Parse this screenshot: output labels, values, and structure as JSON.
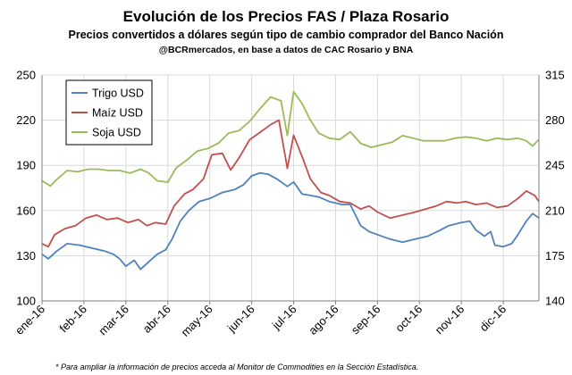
{
  "header": {
    "title": "Evolución de los Precios FAS / Plaza Rosario",
    "subtitle": "Precios convertidos a dólares según tipo de cambio comprador del Banco Nación",
    "credit": "@BCRmercados, en base a datos de CAC Rosario y BNA"
  },
  "footnote": "* Para ampliar la información de precios acceda al Monitor de Commodities en la Sección Estadística.",
  "chart_data": {
    "type": "line",
    "title": "Evolución de los Precios FAS / Plaza Rosario",
    "subtitle": "Precios convertidos a dólares según tipo de cambio comprador del Banco Nación",
    "xlabel": "",
    "ylabel": "",
    "categories": [
      "ene-16",
      "feb-16",
      "mar-16",
      "abr-16",
      "may-16",
      "jun-16",
      "jul-16",
      "ago-16",
      "sep-16",
      "oct-16",
      "nov-16",
      "dic-16"
    ],
    "x_range": [
      0,
      11.85
    ],
    "left_axis": {
      "range": [
        100,
        250
      ],
      "ticks": [
        100,
        130,
        160,
        190,
        220,
        250
      ]
    },
    "right_axis": {
      "range": [
        140,
        315
      ],
      "ticks": [
        140,
        175,
        210,
        245,
        280,
        315
      ]
    },
    "grid": true,
    "legend_position": "top-left",
    "series": [
      {
        "name": "Trigo USD",
        "color": "#4f81bd",
        "axis": "left",
        "points": [
          [
            0,
            131
          ],
          [
            0.15,
            128
          ],
          [
            0.35,
            133
          ],
          [
            0.6,
            138
          ],
          [
            0.9,
            137
          ],
          [
            1.2,
            135
          ],
          [
            1.5,
            133
          ],
          [
            1.7,
            131
          ],
          [
            1.85,
            128
          ],
          [
            2.0,
            123
          ],
          [
            2.2,
            127
          ],
          [
            2.35,
            121
          ],
          [
            2.55,
            126
          ],
          [
            2.75,
            131
          ],
          [
            2.95,
            134
          ],
          [
            3.1,
            141
          ],
          [
            3.3,
            153
          ],
          [
            3.5,
            160
          ],
          [
            3.75,
            166
          ],
          [
            4.0,
            168
          ],
          [
            4.3,
            172
          ],
          [
            4.6,
            174
          ],
          [
            4.8,
            177
          ],
          [
            5.0,
            183
          ],
          [
            5.2,
            185
          ],
          [
            5.4,
            184
          ],
          [
            5.6,
            181
          ],
          [
            5.85,
            176
          ],
          [
            6.0,
            179
          ],
          [
            6.2,
            171
          ],
          [
            6.4,
            170
          ],
          [
            6.6,
            169
          ],
          [
            6.85,
            166
          ],
          [
            7.0,
            165
          ],
          [
            7.15,
            164
          ],
          [
            7.35,
            164
          ],
          [
            7.6,
            150
          ],
          [
            7.8,
            146
          ],
          [
            8.0,
            144
          ],
          [
            8.3,
            141
          ],
          [
            8.6,
            139
          ],
          [
            8.9,
            141
          ],
          [
            9.2,
            143
          ],
          [
            9.5,
            147
          ],
          [
            9.7,
            150
          ],
          [
            10.0,
            152
          ],
          [
            10.2,
            153
          ],
          [
            10.35,
            147
          ],
          [
            10.55,
            143
          ],
          [
            10.7,
            146
          ],
          [
            10.8,
            137
          ],
          [
            11.0,
            136
          ],
          [
            11.2,
            138
          ],
          [
            11.35,
            144
          ],
          [
            11.55,
            153
          ],
          [
            11.7,
            158
          ],
          [
            11.85,
            155
          ]
        ]
      },
      {
        "name": "Maíz USD",
        "color": "#c0504d",
        "axis": "left",
        "points": [
          [
            0,
            138
          ],
          [
            0.15,
            136
          ],
          [
            0.3,
            144
          ],
          [
            0.55,
            148
          ],
          [
            0.8,
            150
          ],
          [
            1.05,
            155
          ],
          [
            1.3,
            157
          ],
          [
            1.55,
            154
          ],
          [
            1.8,
            155
          ],
          [
            2.05,
            152
          ],
          [
            2.3,
            154
          ],
          [
            2.5,
            150
          ],
          [
            2.7,
            152
          ],
          [
            2.95,
            151
          ],
          [
            3.15,
            163
          ],
          [
            3.4,
            171
          ],
          [
            3.6,
            174
          ],
          [
            3.85,
            181
          ],
          [
            4.05,
            197
          ],
          [
            4.3,
            198
          ],
          [
            4.5,
            187
          ],
          [
            4.7,
            195
          ],
          [
            4.95,
            207
          ],
          [
            5.2,
            212
          ],
          [
            5.45,
            217
          ],
          [
            5.65,
            220
          ],
          [
            5.85,
            188
          ],
          [
            6.0,
            210
          ],
          [
            6.2,
            196
          ],
          [
            6.4,
            181
          ],
          [
            6.65,
            172
          ],
          [
            6.85,
            170
          ],
          [
            7.1,
            166
          ],
          [
            7.35,
            165
          ],
          [
            7.6,
            161
          ],
          [
            7.8,
            163
          ],
          [
            8.0,
            159
          ],
          [
            8.3,
            155
          ],
          [
            8.6,
            157
          ],
          [
            8.9,
            159
          ],
          [
            9.15,
            161
          ],
          [
            9.4,
            163
          ],
          [
            9.65,
            166
          ],
          [
            9.9,
            165
          ],
          [
            10.1,
            166
          ],
          [
            10.35,
            164
          ],
          [
            10.6,
            165
          ],
          [
            10.85,
            162
          ],
          [
            11.1,
            163
          ],
          [
            11.35,
            168
          ],
          [
            11.55,
            173
          ],
          [
            11.75,
            170
          ],
          [
            11.85,
            166
          ]
        ]
      },
      {
        "name": "Soja USD",
        "color": "#9bbb59",
        "axis": "right",
        "points": [
          [
            0,
            233
          ],
          [
            0.2,
            229
          ],
          [
            0.35,
            234
          ],
          [
            0.6,
            241
          ],
          [
            0.85,
            240
          ],
          [
            1.1,
            242
          ],
          [
            1.35,
            242
          ],
          [
            1.6,
            241
          ],
          [
            1.85,
            241
          ],
          [
            2.1,
            239
          ],
          [
            2.35,
            242
          ],
          [
            2.55,
            239
          ],
          [
            2.75,
            233
          ],
          [
            3.0,
            232
          ],
          [
            3.2,
            243
          ],
          [
            3.45,
            249
          ],
          [
            3.7,
            256
          ],
          [
            3.95,
            258
          ],
          [
            4.2,
            262
          ],
          [
            4.45,
            270
          ],
          [
            4.7,
            272
          ],
          [
            4.95,
            279
          ],
          [
            5.2,
            289
          ],
          [
            5.45,
            298
          ],
          [
            5.7,
            295
          ],
          [
            5.85,
            268
          ],
          [
            6.0,
            302
          ],
          [
            6.2,
            293
          ],
          [
            6.4,
            280
          ],
          [
            6.6,
            270
          ],
          [
            6.85,
            266
          ],
          [
            7.1,
            265
          ],
          [
            7.35,
            271
          ],
          [
            7.6,
            262
          ],
          [
            7.85,
            259
          ],
          [
            8.1,
            261
          ],
          [
            8.35,
            263
          ],
          [
            8.6,
            268
          ],
          [
            8.85,
            266
          ],
          [
            9.1,
            264
          ],
          [
            9.35,
            264
          ],
          [
            9.6,
            264
          ],
          [
            9.85,
            266
          ],
          [
            10.1,
            267
          ],
          [
            10.35,
            266
          ],
          [
            10.6,
            264
          ],
          [
            10.85,
            266
          ],
          [
            11.1,
            265
          ],
          [
            11.35,
            266
          ],
          [
            11.55,
            264
          ],
          [
            11.7,
            260
          ],
          [
            11.85,
            265
          ]
        ]
      }
    ]
  }
}
